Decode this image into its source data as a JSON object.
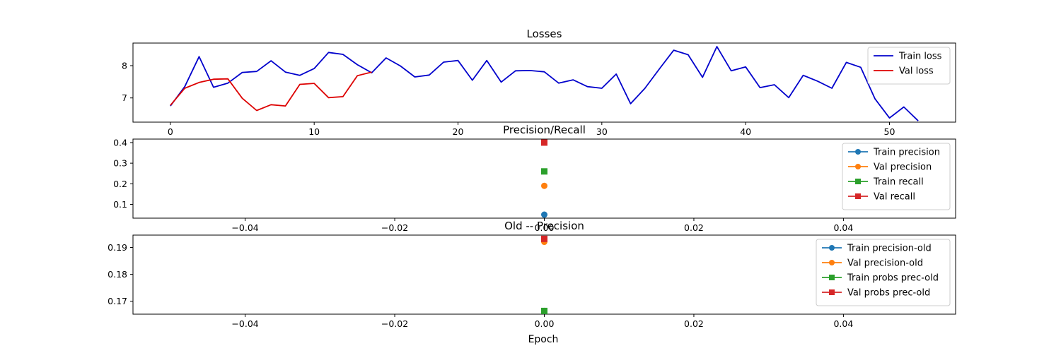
{
  "figure": {
    "xlabel": "Epoch"
  },
  "chart_data": [
    {
      "type": "line",
      "title": "Losses",
      "xlabel": "",
      "ylabel": "",
      "xlim": [
        -2.6,
        54.6
      ],
      "ylim": [
        6.25,
        8.7
      ],
      "xticks": [
        0,
        10,
        20,
        30,
        40,
        50
      ],
      "yticks": [
        7,
        8
      ],
      "xtick_labels": [
        "0",
        "10",
        "20",
        "30",
        "40",
        "50"
      ],
      "ytick_labels": [
        "7",
        "8"
      ],
      "grid": false,
      "legend": "upper right",
      "series": [
        {
          "name": "Train loss",
          "color": "#0000cc",
          "x": [
            0,
            1,
            2,
            3,
            4,
            5,
            6,
            7,
            8,
            9,
            10,
            11,
            12,
            13,
            14,
            15,
            16,
            17,
            18,
            19,
            20,
            21,
            22,
            23,
            24,
            25,
            26,
            27,
            28,
            29,
            30,
            31,
            32,
            33,
            34,
            35,
            36,
            37,
            38,
            39,
            40,
            41,
            42,
            43,
            44,
            45,
            46,
            47,
            48,
            49,
            50,
            51,
            52
          ],
          "y": [
            6.75,
            7.35,
            8.28,
            7.33,
            7.46,
            7.79,
            7.82,
            8.15,
            7.8,
            7.7,
            7.91,
            8.41,
            8.35,
            8.03,
            7.78,
            8.24,
            7.99,
            7.65,
            7.71,
            8.11,
            8.16,
            7.55,
            8.16,
            7.49,
            7.84,
            7.85,
            7.81,
            7.46,
            7.56,
            7.35,
            7.3,
            7.74,
            6.82,
            7.3,
            7.9,
            8.48,
            8.34,
            7.64,
            8.59,
            7.84,
            7.96,
            7.32,
            7.41,
            7.01,
            7.7,
            7.52,
            7.3,
            8.1,
            7.95,
            6.97,
            6.38,
            6.72,
            6.29
          ]
        },
        {
          "name": "Val loss",
          "color": "#dd0000",
          "x": [
            0,
            1,
            2,
            3,
            4,
            5,
            6,
            7,
            8,
            9,
            10,
            11,
            12,
            13,
            14
          ],
          "y": [
            6.77,
            7.3,
            7.48,
            7.58,
            7.59,
            6.99,
            6.61,
            6.79,
            6.75,
            7.42,
            7.45,
            7.01,
            7.04,
            7.69,
            7.8
          ]
        }
      ]
    },
    {
      "type": "scatter",
      "title": "Precision/Recall",
      "xlabel": "",
      "ylabel": "",
      "xlim": [
        -0.055,
        0.055
      ],
      "ylim": [
        0.033,
        0.417
      ],
      "xticks": [
        -0.04,
        -0.02,
        0.0,
        0.02,
        0.04
      ],
      "yticks": [
        0.1,
        0.2,
        0.3,
        0.4
      ],
      "xtick_labels": [
        "−0.04",
        "−0.02",
        "0.00",
        "0.02",
        "0.04"
      ],
      "ytick_labels": [
        "0.1",
        "0.2",
        "0.3",
        "0.4"
      ],
      "grid": false,
      "legend": "upper right",
      "series": [
        {
          "name": "Train precision",
          "color": "#1f77b4",
          "marker": "circle",
          "x": [
            0
          ],
          "y": [
            0.05
          ]
        },
        {
          "name": "Val precision",
          "color": "#ff7f0e",
          "marker": "circle",
          "x": [
            0
          ],
          "y": [
            0.19
          ]
        },
        {
          "name": "Train recall",
          "color": "#2ca02c",
          "marker": "square",
          "x": [
            0
          ],
          "y": [
            0.26
          ]
        },
        {
          "name": "Val recall",
          "color": "#d62728",
          "marker": "square",
          "x": [
            0
          ],
          "y": [
            0.4
          ]
        }
      ]
    },
    {
      "type": "scatter",
      "title": "Old -- Precision",
      "xlabel": "Epoch",
      "ylabel": "",
      "xlim": [
        -0.055,
        0.055
      ],
      "ylim": [
        0.1652,
        0.1946
      ],
      "xticks": [
        -0.04,
        -0.02,
        0.0,
        0.02,
        0.04
      ],
      "yticks": [
        0.17,
        0.18,
        0.19
      ],
      "xtick_labels": [
        "−0.04",
        "−0.02",
        "0.00",
        "0.02",
        "0.04"
      ],
      "ytick_labels": [
        "0.17",
        "0.18",
        "0.19"
      ],
      "grid": false,
      "legend": "upper right",
      "series": [
        {
          "name": "Train precision-old",
          "color": "#1f77b4",
          "marker": "circle",
          "x": [
            0
          ],
          "y": [
            0.1664
          ]
        },
        {
          "name": "Val precision-old",
          "color": "#ff7f0e",
          "marker": "circle",
          "x": [
            0
          ],
          "y": [
            0.1921
          ]
        },
        {
          "name": "Train probs prec-old",
          "color": "#2ca02c",
          "marker": "square",
          "x": [
            0
          ],
          "y": [
            0.1664
          ]
        },
        {
          "name": "Val probs prec-old",
          "color": "#d62728",
          "marker": "square",
          "x": [
            0
          ],
          "y": [
            0.1932
          ]
        }
      ]
    }
  ]
}
